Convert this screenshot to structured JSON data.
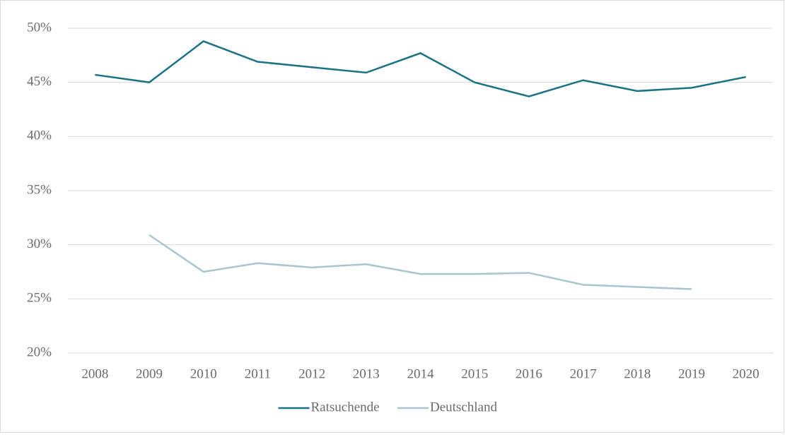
{
  "chart_data": {
    "type": "line",
    "categories": [
      "2008",
      "2009",
      "2010",
      "2011",
      "2012",
      "2013",
      "2014",
      "2015",
      "2016",
      "2017",
      "2018",
      "2019",
      "2020"
    ],
    "series": [
      {
        "name": "Ratsuchende",
        "color": "#1a7385",
        "values": [
          45.7,
          45.0,
          48.8,
          46.9,
          46.4,
          45.9,
          47.7,
          45.0,
          43.7,
          45.2,
          44.2,
          44.5,
          45.5
        ]
      },
      {
        "name": "Deutschland",
        "color": "#a9c6cf",
        "values": [
          null,
          30.9,
          27.5,
          28.3,
          27.9,
          28.2,
          27.3,
          27.3,
          27.4,
          26.3,
          26.1,
          25.9,
          null
        ]
      }
    ],
    "ylim": [
      20,
      50
    ],
    "yticks": [
      {
        "value": 20,
        "label": "20%"
      },
      {
        "value": 25,
        "label": "25%"
      },
      {
        "value": 30,
        "label": "30%"
      },
      {
        "value": 35,
        "label": "35%"
      },
      {
        "value": 40,
        "label": "40%"
      },
      {
        "value": 45,
        "label": "45%"
      },
      {
        "value": 50,
        "label": "50%"
      }
    ],
    "grid": true,
    "legend": "bottom"
  }
}
